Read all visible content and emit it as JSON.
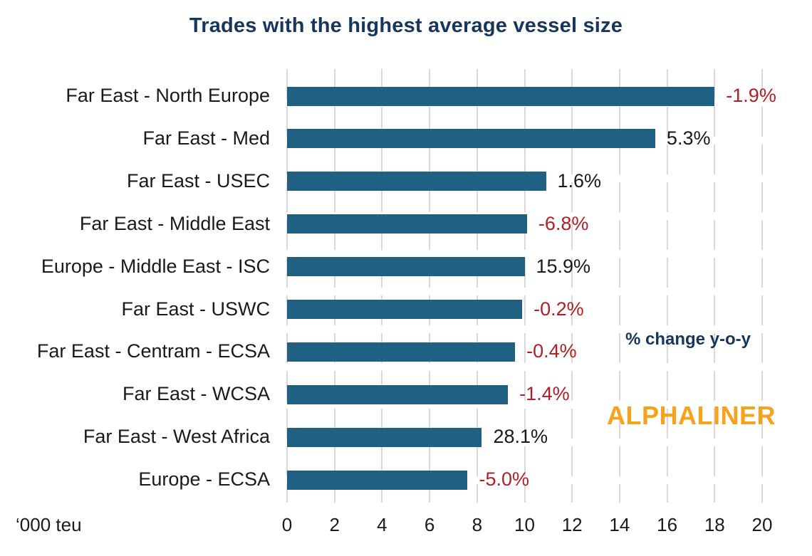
{
  "page": {
    "title": "Trades with the highest average vessel size",
    "unit_note": "‘000 teu",
    "annotation": "% change y-o-y",
    "brand": "ALPHALINER"
  },
  "colors": {
    "bar": "#1F6083",
    "title_navy": "#17365D",
    "negative_label_red": "#B01F24",
    "positive_label_black": "#1A1A1A",
    "gridline_gray": "#D9D9D9",
    "brand_orange": "#F7A21B"
  },
  "chart_data": {
    "type": "bar",
    "orientation": "horizontal",
    "title": "Trades with the highest average vessel size",
    "xlabel": "'000 teu (average vessel size, thousands of TEU)",
    "xlim": [
      0,
      20
    ],
    "x_ticks": [
      0,
      2,
      4,
      6,
      8,
      10,
      12,
      14,
      16,
      18,
      20
    ],
    "grid": true,
    "legend_position": "none",
    "categories": [
      "Far East - North Europe",
      "Far East - Med",
      "Far East - USEC",
      "Far East - Middle East",
      "Europe - Middle East - ISC",
      "Far East - USWC",
      "Far East - Centram - ECSA",
      "Far East - WCSA",
      "Far East - West Africa",
      "Europe - ECSA"
    ],
    "values": [
      18.0,
      15.5,
      10.9,
      10.1,
      10.0,
      9.9,
      9.6,
      9.3,
      8.2,
      7.6
    ],
    "change_labels": [
      "-1.9%",
      "5.3%",
      "1.6%",
      "-6.8%",
      "15.9%",
      "-0.2%",
      "-0.4%",
      "-1.4%",
      "28.1%",
      "-5.0%"
    ],
    "change_values_pct": [
      -1.9,
      5.3,
      1.6,
      -6.8,
      15.9,
      -0.2,
      -0.4,
      -1.4,
      28.1,
      -5.0
    ]
  }
}
